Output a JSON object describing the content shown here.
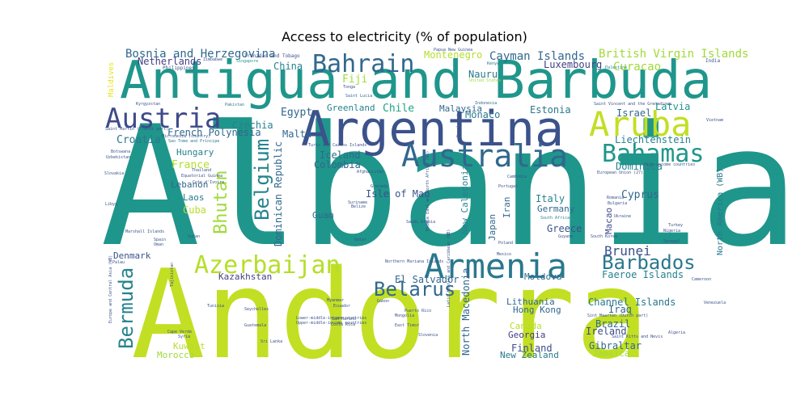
{
  "chart_data": {
    "type": "wordcloud",
    "title": "Access to electricity (% of population)",
    "words": [
      {
        "text": "Albania",
        "weight": 100,
        "color": "#1f968b"
      },
      {
        "text": "Andorra",
        "weight": 100,
        "color": "#c2df23"
      },
      {
        "text": "Antigua and Barbuda",
        "weight": 100,
        "color": "#1f968b"
      },
      {
        "text": "Argentina",
        "weight": 100,
        "color": "#3b528b"
      },
      {
        "text": "Armenia",
        "weight": 100,
        "color": "#2a788e"
      },
      {
        "text": "Aruba",
        "weight": 100,
        "color": "#c2df23"
      },
      {
        "text": "Australia",
        "weight": 100,
        "color": "#31688e"
      },
      {
        "text": "Austria",
        "weight": 100,
        "color": "#3e4a89"
      },
      {
        "text": "Azerbaijan",
        "weight": 100,
        "color": "#b5de2b"
      },
      {
        "text": "Bahamas",
        "weight": 100,
        "color": "#1f968b"
      },
      {
        "text": "Bahrain",
        "weight": 100,
        "color": "#31688e"
      },
      {
        "text": "Barbados",
        "weight": 100,
        "color": "#2a788e"
      },
      {
        "text": "Belarus",
        "weight": 100,
        "color": "#31688e"
      },
      {
        "text": "Belgium",
        "weight": 100,
        "color": "#25838e"
      },
      {
        "text": "Bermuda",
        "weight": 100,
        "color": "#25838e"
      },
      {
        "text": "Bhutan",
        "weight": 100,
        "color": "#9fda3a"
      },
      {
        "text": "Bosnia and Herzegovina",
        "weight": 100,
        "color": "#31688e"
      },
      {
        "text": "Brunei",
        "weight": 100,
        "color": "#3b528b"
      },
      {
        "text": "Cayman Islands",
        "weight": 100,
        "color": "#31688e"
      },
      {
        "text": "British Virgin Islands",
        "weight": 100,
        "color": "#a0da39"
      },
      {
        "text": "Curacao",
        "weight": 100,
        "color": "#a0da39"
      },
      {
        "text": "Luxembourg",
        "weight": 100,
        "color": "#433e85"
      },
      {
        "text": "Montenegro",
        "weight": 100,
        "color": "#b5de2b"
      },
      {
        "text": "Netherlands",
        "weight": 100,
        "color": "#433e85"
      },
      {
        "text": "Nauru",
        "weight": 100,
        "color": "#2a788e"
      },
      {
        "text": "Monaco",
        "weight": 100,
        "color": "#2a788e"
      },
      {
        "text": "China",
        "weight": 100,
        "color": "#25838e"
      },
      {
        "text": "Fiji",
        "weight": 100,
        "color": "#a0da39"
      },
      {
        "text": "Israel",
        "weight": 100,
        "color": "#31688e"
      },
      {
        "text": "Latvia",
        "weight": 100,
        "color": "#1f968b"
      },
      {
        "text": "Egypt",
        "weight": 100,
        "color": "#31688e"
      },
      {
        "text": "Greenland",
        "weight": 100,
        "color": "#26828e"
      },
      {
        "text": "Chile",
        "weight": 100,
        "color": "#20a386"
      },
      {
        "text": "Malaysia",
        "weight": 100,
        "color": "#31688e"
      },
      {
        "text": "Estonia",
        "weight": 100,
        "color": "#2a788e"
      },
      {
        "text": "Czechia",
        "weight": 100,
        "color": "#26828e"
      },
      {
        "text": "Malta",
        "weight": 100,
        "color": "#31688e"
      },
      {
        "text": "French Polynesia",
        "weight": 100,
        "color": "#31688e"
      },
      {
        "text": "Liechtenstein",
        "weight": 100,
        "color": "#26828e"
      },
      {
        "text": "Croatia",
        "weight": 100,
        "color": "#2a788e"
      },
      {
        "text": "Hungary",
        "weight": 100,
        "color": "#26828e"
      },
      {
        "text": "France",
        "weight": 100,
        "color": "#b5de2b"
      },
      {
        "text": "Iceland",
        "weight": 100,
        "color": "#31688e"
      },
      {
        "text": "Colombia",
        "weight": 100,
        "color": "#31688e"
      },
      {
        "text": "Dominican Republic",
        "weight": 100,
        "color": "#31688e"
      },
      {
        "text": "Dominica",
        "weight": 100,
        "color": "#25838e"
      },
      {
        "text": "Lebanon",
        "weight": 100,
        "color": "#31688e"
      },
      {
        "text": "Laos",
        "weight": 100,
        "color": "#2a788e"
      },
      {
        "text": "Cuba",
        "weight": 100,
        "color": "#b5de2b"
      },
      {
        "text": "Isle of Man",
        "weight": 100,
        "color": "#3b528b"
      },
      {
        "text": "Italy",
        "weight": 100,
        "color": "#26828e"
      },
      {
        "text": "Germany",
        "weight": 100,
        "color": "#31688e"
      },
      {
        "text": "Cyprus",
        "weight": 100,
        "color": "#31688e"
      },
      {
        "text": "Greece",
        "weight": 100,
        "color": "#3b528b"
      },
      {
        "text": "Guam",
        "weight": 100,
        "color": "#31688e"
      },
      {
        "text": "Japan",
        "weight": 100,
        "color": "#31688e"
      },
      {
        "text": "Iran",
        "weight": 100,
        "color": "#31688e"
      },
      {
        "text": "Macao",
        "weight": 100,
        "color": "#3e4a89"
      },
      {
        "text": "New Caledonia",
        "weight": 100,
        "color": "#26828e"
      },
      {
        "text": "North America (WB)",
        "weight": 100,
        "color": "#2a788e"
      },
      {
        "text": "Denmark",
        "weight": 100,
        "color": "#3b528b"
      },
      {
        "text": "El Salvador",
        "weight": 100,
        "color": "#31688e"
      },
      {
        "text": "Moldova",
        "weight": 100,
        "color": "#31688e"
      },
      {
        "text": "Kazakhstan",
        "weight": 100,
        "color": "#433e85"
      },
      {
        "text": "Faeroe Islands",
        "weight": 100,
        "color": "#26828e"
      },
      {
        "text": "North Macedonia",
        "weight": 100,
        "color": "#31688e"
      },
      {
        "text": "Lithuania",
        "weight": 100,
        "color": "#31688e"
      },
      {
        "text": "Hong Kong",
        "weight": 100,
        "color": "#31688e"
      },
      {
        "text": "Channel Islands",
        "weight": 100,
        "color": "#2a788e"
      },
      {
        "text": "Iraq",
        "weight": 100,
        "color": "#31688e"
      },
      {
        "text": "Brazil",
        "weight": 100,
        "color": "#31688e"
      },
      {
        "text": "Canada",
        "weight": 100,
        "color": "#b5de2b"
      },
      {
        "text": "Georgia",
        "weight": 100,
        "color": "#433e85"
      },
      {
        "text": "Finland",
        "weight": 100,
        "color": "#3e4a89"
      },
      {
        "text": "New Zealand",
        "weight": 100,
        "color": "#2a788e"
      },
      {
        "text": "Ireland",
        "weight": 100,
        "color": "#3e4a89"
      },
      {
        "text": "Gibraltar",
        "weight": 100,
        "color": "#31688e"
      },
      {
        "text": "Jamaica",
        "weight": 100,
        "color": "#a0da39"
      },
      {
        "text": "Kuwait",
        "weight": 100,
        "color": "#b5de2b"
      },
      {
        "text": "Morocco",
        "weight": 100,
        "color": "#9fda3a"
      },
      {
        "text": "Maldives",
        "weight": 100,
        "color": "#e8e419"
      },
      {
        "text": "Trinidad and Tobago",
        "weight": 100,
        "color": "#3b528b"
      },
      {
        "text": "Papua New Guinea",
        "weight": 100,
        "color": "#3b528b"
      },
      {
        "text": "Zimbabwe",
        "weight": 100,
        "color": "#3b528b"
      },
      {
        "text": "Singapore",
        "weight": 100,
        "color": "#1f968b"
      },
      {
        "text": "Philippines",
        "weight": 100,
        "color": "#3b528b"
      },
      {
        "text": "Tonga",
        "weight": 100,
        "color": "#3b528b"
      },
      {
        "text": "Kenya",
        "weight": 100,
        "color": "#2a788e"
      },
      {
        "text": "Palestine",
        "weight": 100,
        "color": "#26828e"
      },
      {
        "text": "India",
        "weight": 100,
        "color": "#3b528b"
      },
      {
        "text": "United States",
        "weight": 100,
        "color": "#a0da39"
      },
      {
        "text": "Saint Lucia",
        "weight": 100,
        "color": "#31688e"
      },
      {
        "text": "Kyrgyzstan",
        "weight": 100,
        "color": "#3b528b"
      },
      {
        "text": "Pakistan",
        "weight": 100,
        "color": "#2a788e"
      },
      {
        "text": "Indonesia",
        "weight": 100,
        "color": "#31688e"
      },
      {
        "text": "Saint Vincent and the Grenadines",
        "weight": 100,
        "color": "#3b528b"
      },
      {
        "text": "Saint Martin (French part)",
        "weight": 100,
        "color": "#3b528b"
      },
      {
        "text": "Micronesia (country)",
        "weight": 100,
        "color": "#3b528b"
      },
      {
        "text": "Sao Tome and Principe",
        "weight": 100,
        "color": "#2a788e"
      },
      {
        "text": "Turks and Caicos Islands",
        "weight": 100,
        "color": "#3b528b"
      },
      {
        "text": "Bangladesh",
        "weight": 100,
        "color": "#3b528b"
      },
      {
        "text": "Vietnam",
        "weight": 100,
        "color": "#3b528b"
      },
      {
        "text": "Botswana",
        "weight": 100,
        "color": "#3b528b"
      },
      {
        "text": "Uzbekistan",
        "weight": 100,
        "color": "#3b528b"
      },
      {
        "text": "Thailand",
        "weight": 100,
        "color": "#3b528b"
      },
      {
        "text": "Equatorial Guinea",
        "weight": 100,
        "color": "#3b528b"
      },
      {
        "text": "Afghanistan",
        "weight": 100,
        "color": "#3b528b"
      },
      {
        "text": "Cambodia",
        "weight": 100,
        "color": "#3b528b"
      },
      {
        "text": "European Union (27)",
        "weight": 100,
        "color": "#3b528b"
      },
      {
        "text": "High-income countries",
        "weight": 100,
        "color": "#3b528b"
      },
      {
        "text": "Slovakia",
        "weight": 100,
        "color": "#3b528b"
      },
      {
        "text": "Cote d'Ivoire",
        "weight": 100,
        "color": "#3b528b"
      },
      {
        "text": "Grenada",
        "weight": 100,
        "color": "#3b528b"
      },
      {
        "text": "Portugal",
        "weight": 100,
        "color": "#3b528b"
      },
      {
        "text": "Romania",
        "weight": 100,
        "color": "#3b528b"
      },
      {
        "text": "Bulgaria",
        "weight": 100,
        "color": "#3b528b"
      },
      {
        "text": "Libya",
        "weight": 100,
        "color": "#3b528b"
      },
      {
        "text": "South Africa",
        "weight": 100,
        "color": "#26828e"
      },
      {
        "text": "Ukraine",
        "weight": 100,
        "color": "#3b528b"
      },
      {
        "text": "Turkey",
        "weight": 100,
        "color": "#3b528b"
      },
      {
        "text": "Nigeria",
        "weight": 100,
        "color": "#3b528b"
      },
      {
        "text": "Marshall Islands",
        "weight": 100,
        "color": "#3b528b"
      },
      {
        "text": "Sudan",
        "weight": 100,
        "color": "#3b528b"
      },
      {
        "text": "Spain",
        "weight": 100,
        "color": "#3b528b"
      },
      {
        "text": "Oman",
        "weight": 100,
        "color": "#3b528b"
      },
      {
        "text": "Qatar",
        "weight": 100,
        "color": "#3b528b"
      },
      {
        "text": "Saudi Arabia",
        "weight": 100,
        "color": "#3b528b"
      },
      {
        "text": "Suriname",
        "weight": 100,
        "color": "#3b528b"
      },
      {
        "text": "Belize",
        "weight": 100,
        "color": "#3b528b"
      },
      {
        "text": "Poland",
        "weight": 100,
        "color": "#3b528b"
      },
      {
        "text": "Senegal",
        "weight": 100,
        "color": "#3b528b"
      },
      {
        "text": "Cameroon",
        "weight": 100,
        "color": "#3b528b"
      },
      {
        "text": "Mexico",
        "weight": 100,
        "color": "#3b528b"
      },
      {
        "text": "Guyana",
        "weight": 100,
        "color": "#3b528b"
      },
      {
        "text": "South Korea",
        "weight": 100,
        "color": "#3b528b"
      },
      {
        "text": "Palau",
        "weight": 100,
        "color": "#3b528b"
      },
      {
        "text": "Tajikistan",
        "weight": 100,
        "color": "#3b528b"
      },
      {
        "text": "Ecuador",
        "weight": 100,
        "color": "#3b528b"
      },
      {
        "text": "Tunisia",
        "weight": 100,
        "color": "#3b528b"
      },
      {
        "text": "Seychelles",
        "weight": 100,
        "color": "#3b528b"
      },
      {
        "text": "Myanmar",
        "weight": 100,
        "color": "#3b528b"
      },
      {
        "text": "Gabon",
        "weight": 100,
        "color": "#3b528b"
      },
      {
        "text": "Puerto Rico",
        "weight": 100,
        "color": "#3b528b"
      },
      {
        "text": "Mongolia",
        "weight": 100,
        "color": "#3b528b"
      },
      {
        "text": "San Marino",
        "weight": 100,
        "color": "#3b528b"
      },
      {
        "text": "Costa Rica",
        "weight": 100,
        "color": "#3b528b"
      },
      {
        "text": "East Timor",
        "weight": 100,
        "color": "#3b528b"
      },
      {
        "text": "Slovenia",
        "weight": 100,
        "color": "#3b528b"
      },
      {
        "text": "Venezuela",
        "weight": 100,
        "color": "#3b528b"
      },
      {
        "text": "Algeria",
        "weight": 100,
        "color": "#3b528b"
      },
      {
        "text": "Guatemala",
        "weight": 100,
        "color": "#3b528b"
      },
      {
        "text": "Cape Verde",
        "weight": 100,
        "color": "#3b528b"
      },
      {
        "text": "Syria",
        "weight": 100,
        "color": "#3b528b"
      },
      {
        "text": "Saint Kitts and Nevis",
        "weight": 100,
        "color": "#3b528b"
      },
      {
        "text": "Sint Maarten (Dutch part)",
        "weight": 100,
        "color": "#3b528b"
      },
      {
        "text": "Northern Mariana Islands",
        "weight": 100,
        "color": "#3b528b"
      },
      {
        "text": "Latin America and Caribbean (WB)",
        "weight": 100,
        "color": "#3b528b"
      },
      {
        "text": "Europe and Central Asia (WB)",
        "weight": 100,
        "color": "#3b528b"
      },
      {
        "text": "Lower-middle-income countries",
        "weight": 100,
        "color": "#3b528b"
      },
      {
        "text": "Upper-middle-income countries",
        "weight": 100,
        "color": "#3b528b"
      },
      {
        "text": "Middle East and North Africa (WB)",
        "weight": 100,
        "color": "#3b528b"
      },
      {
        "text": "Sri Lanka",
        "weight": 100,
        "color": "#3b528b"
      }
    ]
  }
}
